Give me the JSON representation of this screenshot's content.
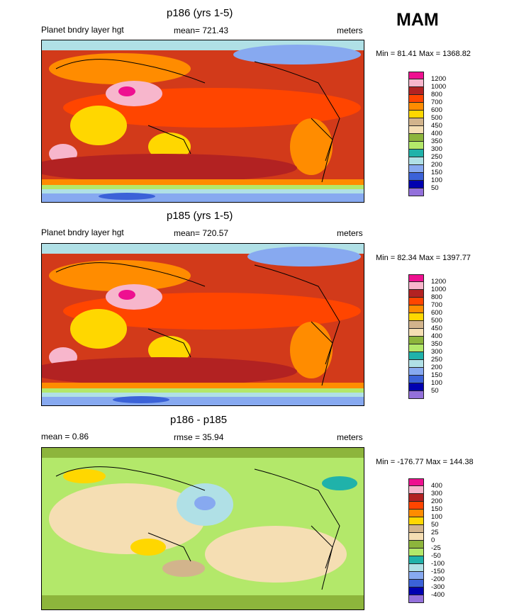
{
  "season": "MAM",
  "panels": [
    {
      "id": "p186",
      "title": "p186 (yrs 1-5)",
      "left_label": "Planet bndry layer hgt",
      "center_label": "mean= 721.43",
      "right_label": "meters",
      "minmax": "Min =  81.41 Max = 1368.82",
      "levels": [
        "1200",
        "1000",
        "800",
        "700",
        "600",
        "500",
        "450",
        "400",
        "350",
        "300",
        "250",
        "200",
        "150",
        "100",
        "50"
      ],
      "colors": [
        "#ee1090",
        "#f7b6cc",
        "#b22222",
        "#ff4500",
        "#ff8c00",
        "#ffd700",
        "#d2b48c",
        "#f5deb3",
        "#8db53c",
        "#b3e86a",
        "#20b2aa",
        "#b0e0e6",
        "#87a9f0",
        "#3b62d8",
        "#0000b0",
        "#9370db"
      ]
    },
    {
      "id": "p185",
      "title": "p185 (yrs 1-5)",
      "left_label": "Planet bndry layer hgt",
      "center_label": "mean= 720.57",
      "right_label": "meters",
      "minmax": "Min =  82.34 Max = 1397.77",
      "levels": [
        "1200",
        "1000",
        "800",
        "700",
        "600",
        "500",
        "450",
        "400",
        "350",
        "300",
        "250",
        "200",
        "150",
        "100",
        "50"
      ],
      "colors": [
        "#ee1090",
        "#f7b6cc",
        "#b22222",
        "#ff4500",
        "#ff8c00",
        "#ffd700",
        "#d2b48c",
        "#f5deb3",
        "#8db53c",
        "#b3e86a",
        "#20b2aa",
        "#b0e0e6",
        "#87a9f0",
        "#3b62d8",
        "#0000b0",
        "#9370db"
      ]
    },
    {
      "id": "diff",
      "title": "p186 - p185",
      "left_label": "mean =   0.86",
      "center_label": "rmse =  35.94",
      "right_label": "meters",
      "minmax": "Min = -176.77 Max = 144.38",
      "levels": [
        "400",
        "300",
        "200",
        "150",
        "100",
        "50",
        "25",
        "0",
        "-25",
        "-50",
        "-100",
        "-150",
        "-200",
        "-300",
        "-400"
      ],
      "colors": [
        "#ee1090",
        "#f7b6cc",
        "#b22222",
        "#ff4500",
        "#ff8c00",
        "#ffd700",
        "#d2b48c",
        "#f5deb3",
        "#8db53c",
        "#b3e86a",
        "#20b2aa",
        "#b0e0e6",
        "#87a9f0",
        "#3b62d8",
        "#0000b0",
        "#9370db"
      ]
    }
  ],
  "chart_data": [
    {
      "type": "heatmap",
      "title": "p186 (yrs 1-5)",
      "variable": "Planet bndry layer hgt",
      "units": "meters",
      "mean": 721.43,
      "min": 81.41,
      "max": 1368.82,
      "contour_levels": [
        50,
        100,
        150,
        200,
        250,
        300,
        350,
        400,
        450,
        500,
        600,
        700,
        800,
        1000,
        1200
      ]
    },
    {
      "type": "heatmap",
      "title": "p185 (yrs 1-5)",
      "variable": "Planet bndry layer hgt",
      "units": "meters",
      "mean": 720.57,
      "min": 82.34,
      "max": 1397.77,
      "contour_levels": [
        50,
        100,
        150,
        200,
        250,
        300,
        350,
        400,
        450,
        500,
        600,
        700,
        800,
        1000,
        1200
      ]
    },
    {
      "type": "heatmap",
      "title": "p186 - p185",
      "units": "meters",
      "mean": 0.86,
      "rmse": 35.94,
      "min": -176.77,
      "max": 144.38,
      "contour_levels": [
        -400,
        -300,
        -200,
        -150,
        -100,
        -50,
        -25,
        0,
        25,
        50,
        100,
        150,
        200,
        300,
        400
      ]
    }
  ]
}
